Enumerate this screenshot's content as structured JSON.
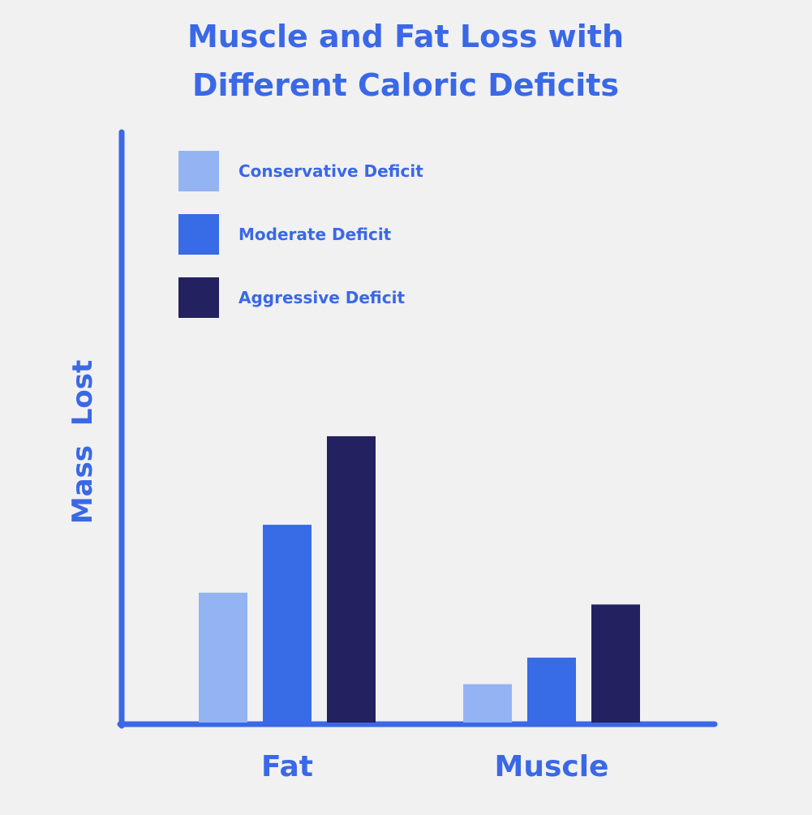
{
  "colors": {
    "title": "#3a68e6",
    "axis": "#3a68e6",
    "background": "#f1f1f1",
    "series": [
      "#94b3f3",
      "#386be6",
      "#242160"
    ]
  },
  "chart_data": {
    "type": "bar",
    "title_lines": [
      "Muscle and Fat Loss with",
      "Different Caloric Deficits"
    ],
    "xlabel": "",
    "ylabel": "Mass  Lost",
    "categories": [
      "Fat",
      "Muscle"
    ],
    "series": [
      {
        "name": "Conservative Deficit",
        "values": [
          22,
          6.5
        ]
      },
      {
        "name": "Moderate Deficit",
        "values": [
          33.5,
          11
        ]
      },
      {
        "name": "Aggressive Deficit",
        "values": [
          48.5,
          20
        ]
      }
    ],
    "ylim": [
      0,
      100
    ],
    "y_ticks_shown": false,
    "grid": false,
    "legend_position": "top-left"
  }
}
